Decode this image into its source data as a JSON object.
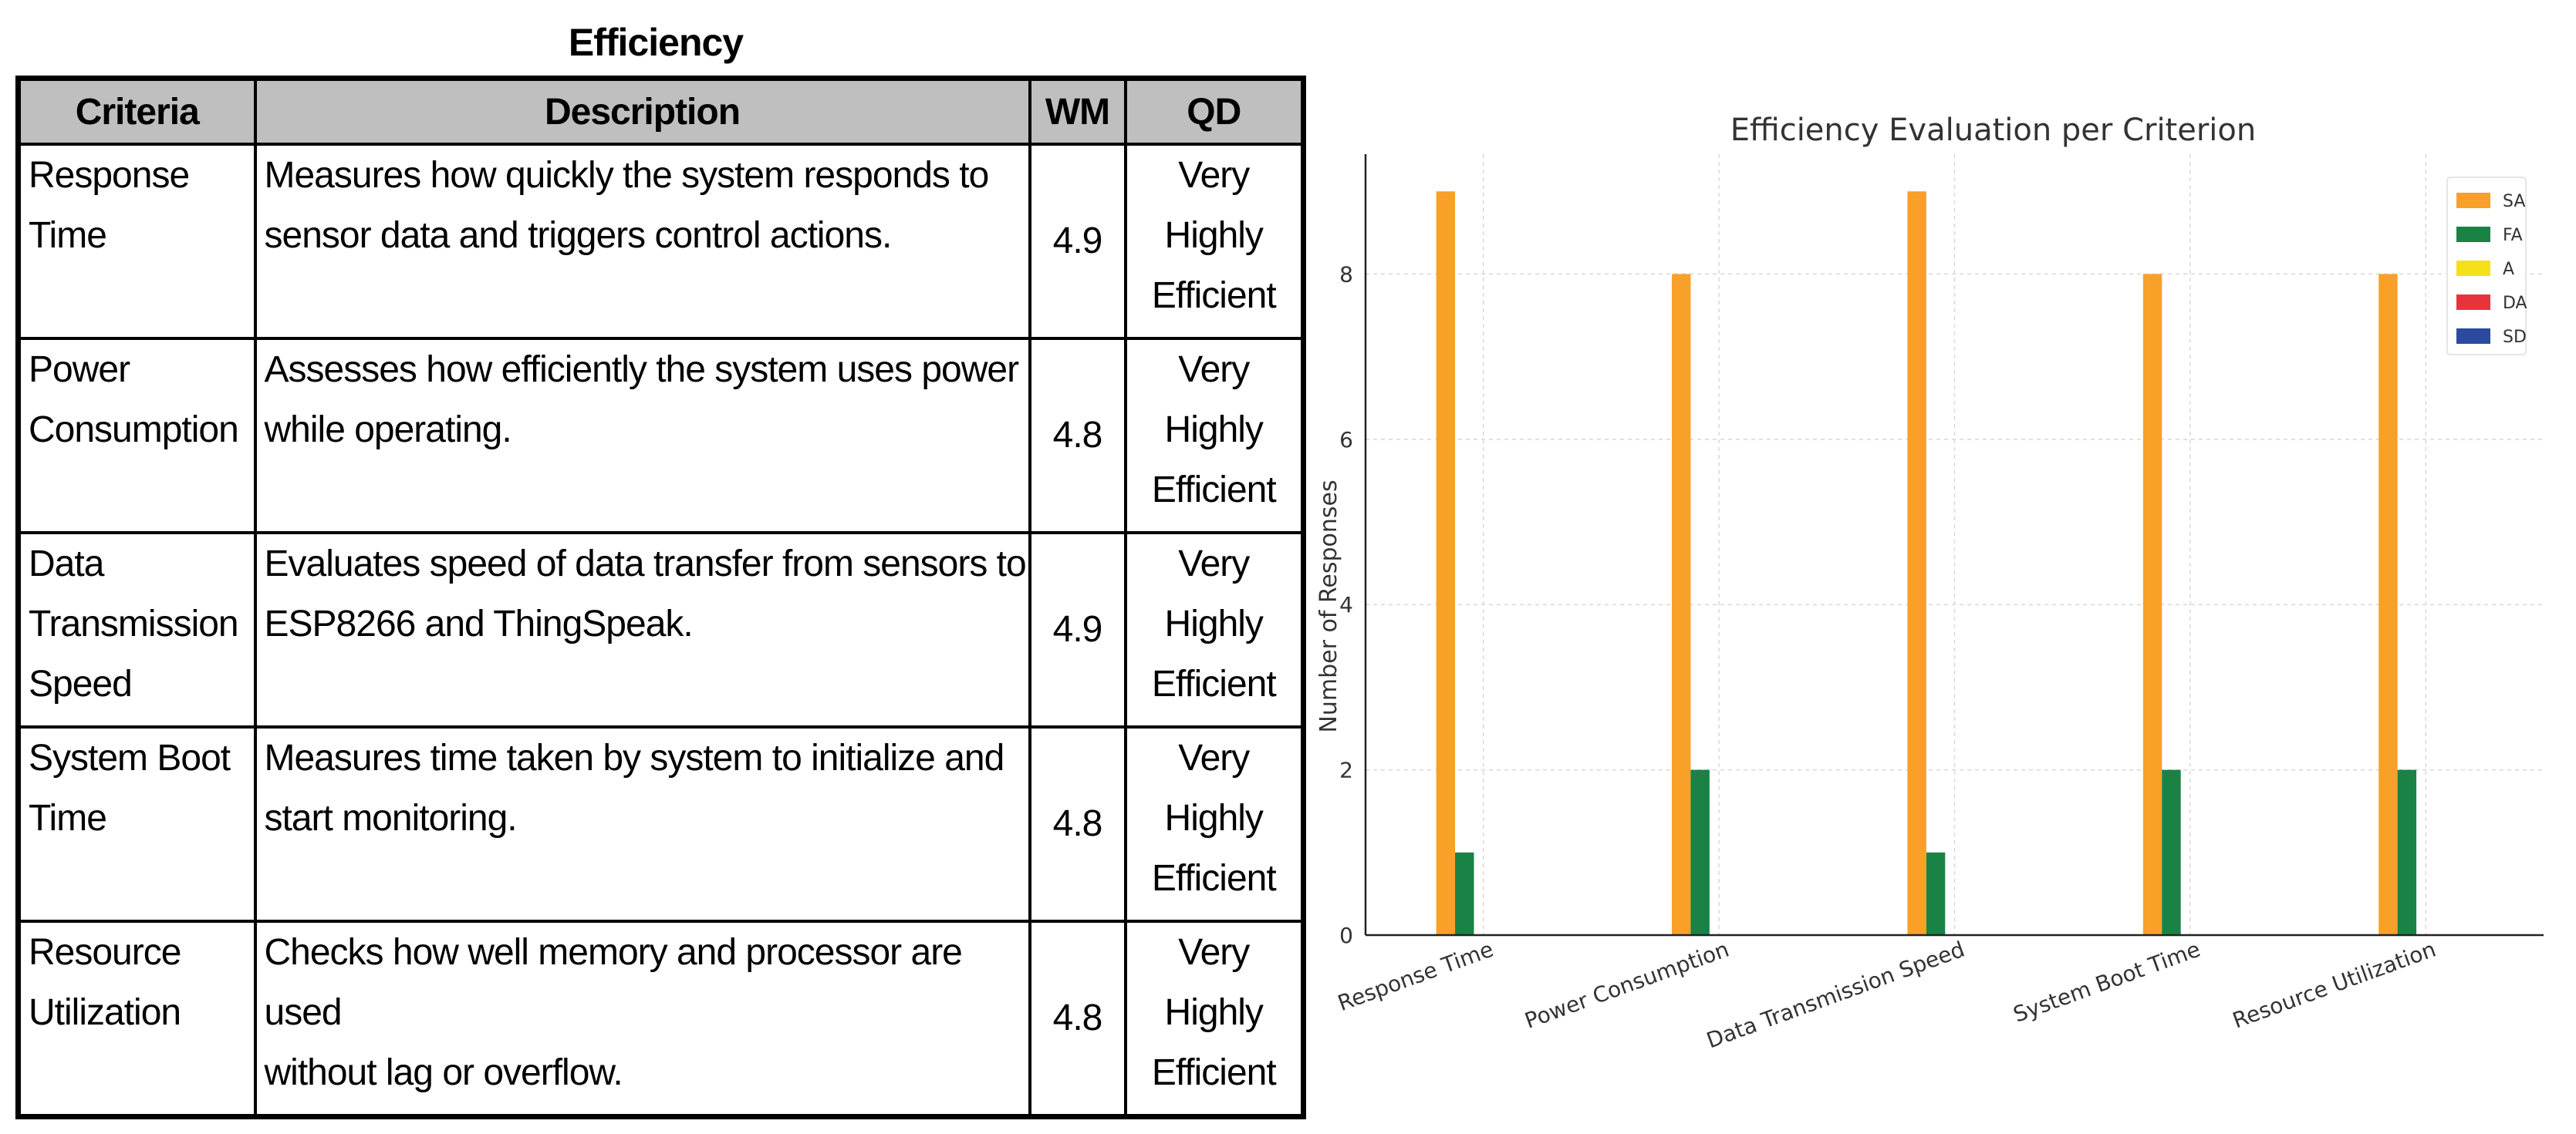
{
  "table": {
    "title": "Efficiency",
    "headers": {
      "criteria": "Criteria",
      "description": "Description",
      "wm": "WM",
      "qd": "QD"
    },
    "rows": [
      {
        "criteria": [
          "Response Time"
        ],
        "description": [
          "Measures how quickly the system responds to",
          "sensor data and triggers control actions."
        ],
        "wm": "4.9",
        "qd": [
          "Very",
          "Highly",
          "Efficient"
        ]
      },
      {
        "criteria": [
          "Power",
          "Consumption"
        ],
        "description": [
          "Assesses how efficiently the system uses power",
          "while operating."
        ],
        "wm": "4.8",
        "qd": [
          "Very",
          "Highly",
          "Efficient"
        ]
      },
      {
        "criteria": [
          "Data",
          "Transmission",
          "Speed"
        ],
        "description": [
          "Evaluates speed of data transfer from sensors to",
          "ESP8266 and ThingSpeak."
        ],
        "wm": "4.9",
        "qd": [
          "Very",
          "Highly",
          "Efficient"
        ]
      },
      {
        "criteria": [
          "System Boot",
          "Time"
        ],
        "description": [
          "Measures time taken by system to initialize and",
          "start monitoring."
        ],
        "wm": "4.8",
        "qd": [
          "Very",
          "Highly",
          "Efficient"
        ]
      },
      {
        "criteria": [
          "Resource",
          "Utilization"
        ],
        "description": [
          "Checks how well memory and processor are used",
          "without lag or overflow."
        ],
        "wm": "4.8",
        "qd": [
          "Very",
          "Highly",
          "Efficient"
        ]
      }
    ]
  },
  "chart_data": {
    "type": "bar",
    "title": "Efficiency Evaluation per Criterion",
    "xlabel": "",
    "ylabel": "Number of Responses",
    "categories": [
      "Response Time",
      "Power Consumption",
      "Data Transmission Speed",
      "System Boot Time",
      "Resource Utilization"
    ],
    "series": [
      {
        "name": "SA",
        "color": "#f9a028",
        "values": [
          9,
          8,
          9,
          8,
          8
        ]
      },
      {
        "name": "FA",
        "color": "#1a8245",
        "values": [
          1,
          2,
          1,
          2,
          2
        ]
      },
      {
        "name": "A",
        "color": "#f5e11a",
        "values": [
          0,
          0,
          0,
          0,
          0
        ]
      },
      {
        "name": "DA",
        "color": "#e8323c",
        "values": [
          0,
          0,
          0,
          0,
          0
        ]
      },
      {
        "name": "SD",
        "color": "#2b4aa0",
        "values": [
          0,
          0,
          0,
          0,
          0
        ]
      }
    ],
    "ylim": [
      0,
      9.45
    ],
    "yticks": [
      0,
      2,
      4,
      6,
      8
    ],
    "grid": true,
    "legend": "top-right"
  }
}
